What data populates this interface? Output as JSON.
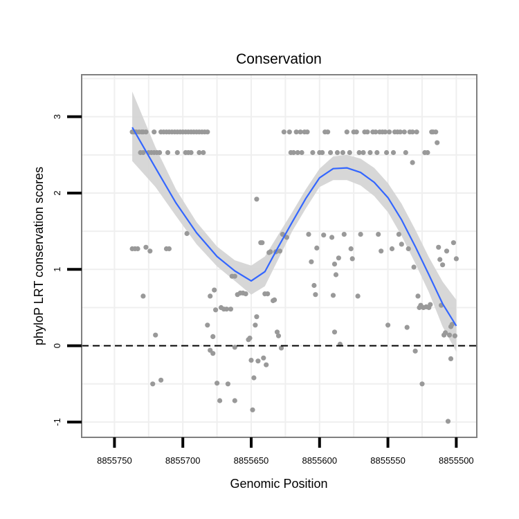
{
  "chart_data": {
    "type": "scatter",
    "title": "Conservation",
    "xlabel": "Genomic Position",
    "ylabel": "phyloP LRT conservation scores",
    "x_reversed": true,
    "xlim": [
      8855774,
      8855485
    ],
    "ylim": [
      -1.2,
      3.55
    ],
    "x_ticks": [
      8855750,
      8855700,
      8855650,
      8855600,
      8855550,
      8855500
    ],
    "x_tick_labels": [
      "8855750",
      "8855700",
      "8855650",
      "8855600",
      "8855550",
      "8855500"
    ],
    "y_ticks": [
      -1,
      0,
      1,
      2,
      3
    ],
    "y_tick_labels": [
      "-1",
      "0",
      "1",
      "2",
      "3"
    ],
    "reference_line": {
      "y": 0,
      "style": "dashed",
      "color": "#000000"
    },
    "grid": true,
    "colors": {
      "points": "#999999",
      "smooth": "#3366ff",
      "band": "#d3d3d3",
      "grid": "#efefef",
      "frame": "#7f7f7f"
    },
    "points": [
      {
        "x": 8855737,
        "y": 2.8
      },
      {
        "x": 8855736,
        "y": 2.8
      },
      {
        "x": 8855735,
        "y": 2.8
      },
      {
        "x": 8855734,
        "y": 2.8
      },
      {
        "x": 8855732,
        "y": 2.8
      },
      {
        "x": 8855730,
        "y": 2.8
      },
      {
        "x": 8855729,
        "y": 2.8
      },
      {
        "x": 8855727,
        "y": 2.8
      },
      {
        "x": 8855721,
        "y": 2.8
      },
      {
        "x": 8855716,
        "y": 2.8
      },
      {
        "x": 8855714,
        "y": 2.8
      },
      {
        "x": 8855712,
        "y": 2.8
      },
      {
        "x": 8855710,
        "y": 2.8
      },
      {
        "x": 8855708,
        "y": 2.8
      },
      {
        "x": 8855706,
        "y": 2.8
      },
      {
        "x": 8855704,
        "y": 2.8
      },
      {
        "x": 8855702,
        "y": 2.8
      },
      {
        "x": 8855700,
        "y": 2.8
      },
      {
        "x": 8855698,
        "y": 2.8
      },
      {
        "x": 8855696,
        "y": 2.8
      },
      {
        "x": 8855694,
        "y": 2.8
      },
      {
        "x": 8855692,
        "y": 2.8
      },
      {
        "x": 8855690,
        "y": 2.8
      },
      {
        "x": 8855688,
        "y": 2.8
      },
      {
        "x": 8855686,
        "y": 2.8
      },
      {
        "x": 8855684,
        "y": 2.8
      },
      {
        "x": 8855682,
        "y": 2.8
      },
      {
        "x": 8855731,
        "y": 2.53
      },
      {
        "x": 8855729,
        "y": 2.53
      },
      {
        "x": 8855725,
        "y": 2.53
      },
      {
        "x": 8855723,
        "y": 2.53
      },
      {
        "x": 8855721,
        "y": 2.53
      },
      {
        "x": 8855719,
        "y": 2.53
      },
      {
        "x": 8855717,
        "y": 2.53
      },
      {
        "x": 8855711,
        "y": 2.53
      },
      {
        "x": 8855704,
        "y": 2.53
      },
      {
        "x": 8855698,
        "y": 2.53
      },
      {
        "x": 8855696,
        "y": 2.53
      },
      {
        "x": 8855694,
        "y": 2.53
      },
      {
        "x": 8855688,
        "y": 2.53
      },
      {
        "x": 8855685,
        "y": 2.53
      },
      {
        "x": 8855737,
        "y": 1.27
      },
      {
        "x": 8855735,
        "y": 1.27
      },
      {
        "x": 8855733,
        "y": 1.27
      },
      {
        "x": 8855727,
        "y": 1.29
      },
      {
        "x": 8855724,
        "y": 1.24
      },
      {
        "x": 8855712,
        "y": 1.27
      },
      {
        "x": 8855710,
        "y": 1.27
      },
      {
        "x": 8855697,
        "y": 1.47
      },
      {
        "x": 8855729,
        "y": 0.65
      },
      {
        "x": 8855720,
        "y": 0.14
      },
      {
        "x": 8855722,
        "y": -0.5
      },
      {
        "x": 8855716,
        "y": -0.45
      },
      {
        "x": 8855682,
        "y": 0.27
      },
      {
        "x": 8855680,
        "y": 0.65
      },
      {
        "x": 8855680,
        "y": -0.06
      },
      {
        "x": 8855678,
        "y": 0.12
      },
      {
        "x": 8855678,
        "y": -0.1
      },
      {
        "x": 8855677,
        "y": 0.73
      },
      {
        "x": 8855676,
        "y": 0.47
      },
      {
        "x": 8855675,
        "y": -0.49
      },
      {
        "x": 8855673,
        "y": -0.72
      },
      {
        "x": 8855672,
        "y": 0.5
      },
      {
        "x": 8855670,
        "y": 0.48
      },
      {
        "x": 8855668,
        "y": 0.48
      },
      {
        "x": 8855667,
        "y": -0.5
      },
      {
        "x": 8855665,
        "y": 0.48
      },
      {
        "x": 8855664,
        "y": 0.91
      },
      {
        "x": 8855662,
        "y": -0.02
      },
      {
        "x": 8855662,
        "y": -0.72
      },
      {
        "x": 8855662,
        "y": 0.91
      },
      {
        "x": 8855660,
        "y": 0.67
      },
      {
        "x": 8855658,
        "y": 0.69
      },
      {
        "x": 8855656,
        "y": 0.69
      },
      {
        "x": 8855654,
        "y": 0.68
      },
      {
        "x": 8855652,
        "y": 0.08
      },
      {
        "x": 8855651,
        "y": 0.1
      },
      {
        "x": 8855650,
        "y": -0.19
      },
      {
        "x": 8855649,
        "y": -0.84
      },
      {
        "x": 8855648,
        "y": -0.42
      },
      {
        "x": 8855647,
        "y": 0.27
      },
      {
        "x": 8855646,
        "y": 0.38
      },
      {
        "x": 8855646,
        "y": 1.92
      },
      {
        "x": 8855645,
        "y": -0.2
      },
      {
        "x": 8855643,
        "y": 1.35
      },
      {
        "x": 8855642,
        "y": 1.35
      },
      {
        "x": 8855641,
        "y": -0.16
      },
      {
        "x": 8855640,
        "y": 0.68
      },
      {
        "x": 8855639,
        "y": -0.25
      },
      {
        "x": 8855638,
        "y": 0.68
      },
      {
        "x": 8855637,
        "y": 1.22
      },
      {
        "x": 8855636,
        "y": 1.23
      },
      {
        "x": 8855634,
        "y": 0.59
      },
      {
        "x": 8855633,
        "y": 0.6
      },
      {
        "x": 8855632,
        "y": 1.23
      },
      {
        "x": 8855631,
        "y": 0.18
      },
      {
        "x": 8855630,
        "y": 0.13
      },
      {
        "x": 8855629,
        "y": 1.24
      },
      {
        "x": 8855628,
        "y": -0.03
      },
      {
        "x": 8855627,
        "y": 1.46
      },
      {
        "x": 8855626,
        "y": 2.8
      },
      {
        "x": 8855624,
        "y": 1.42
      },
      {
        "x": 8855622,
        "y": 2.8
      },
      {
        "x": 8855621,
        "y": 2.53
      },
      {
        "x": 8855619,
        "y": 2.53
      },
      {
        "x": 8855617,
        "y": 2.8
      },
      {
        "x": 8855616,
        "y": 2.53
      },
      {
        "x": 8855614,
        "y": 2.8
      },
      {
        "x": 8855613,
        "y": 2.53
      },
      {
        "x": 8855611,
        "y": 2.8
      },
      {
        "x": 8855609,
        "y": 2.8
      },
      {
        "x": 8855608,
        "y": 1.46
      },
      {
        "x": 8855606,
        "y": 1.1
      },
      {
        "x": 8855605,
        "y": 2.53
      },
      {
        "x": 8855604,
        "y": 0.79
      },
      {
        "x": 8855603,
        "y": 0.67
      },
      {
        "x": 8855602,
        "y": 1.28
      },
      {
        "x": 8855600,
        "y": 2.53
      },
      {
        "x": 8855598,
        "y": 2.53
      },
      {
        "x": 8855597,
        "y": 1.45
      },
      {
        "x": 8855596,
        "y": 2.8
      },
      {
        "x": 8855594,
        "y": 2.8
      },
      {
        "x": 8855592,
        "y": 2.53
      },
      {
        "x": 8855591,
        "y": 1.42
      },
      {
        "x": 8855590,
        "y": 0.66
      },
      {
        "x": 8855589,
        "y": 0.18
      },
      {
        "x": 8855589,
        "y": 1.07
      },
      {
        "x": 8855588,
        "y": 0.93
      },
      {
        "x": 8855587,
        "y": 2.53
      },
      {
        "x": 8855586,
        "y": 1.15
      },
      {
        "x": 8855585,
        "y": 0.02
      },
      {
        "x": 8855583,
        "y": 2.53
      },
      {
        "x": 8855582,
        "y": 1.46
      },
      {
        "x": 8855580,
        "y": 2.8
      },
      {
        "x": 8855578,
        "y": 2.53
      },
      {
        "x": 8855577,
        "y": 1.27
      },
      {
        "x": 8855576,
        "y": 1.14
      },
      {
        "x": 8855575,
        "y": 2.8
      },
      {
        "x": 8855573,
        "y": 2.8
      },
      {
        "x": 8855572,
        "y": 0.65
      },
      {
        "x": 8855571,
        "y": 2.53
      },
      {
        "x": 8855570,
        "y": 1.46
      },
      {
        "x": 8855568,
        "y": 2.53
      },
      {
        "x": 8855567,
        "y": 2.8
      },
      {
        "x": 8855565,
        "y": 2.8
      },
      {
        "x": 8855563,
        "y": 2.53
      },
      {
        "x": 8855561,
        "y": 2.8
      },
      {
        "x": 8855559,
        "y": 2.8
      },
      {
        "x": 8855558,
        "y": 2.53
      },
      {
        "x": 8855557,
        "y": 1.46
      },
      {
        "x": 8855556,
        "y": 2.8
      },
      {
        "x": 8855555,
        "y": 1.24
      },
      {
        "x": 8855554,
        "y": 2.8
      },
      {
        "x": 8855552,
        "y": 2.8
      },
      {
        "x": 8855551,
        "y": 2.53
      },
      {
        "x": 8855550,
        "y": 0.27
      },
      {
        "x": 8855549,
        "y": 2.8
      },
      {
        "x": 8855547,
        "y": 1.27
      },
      {
        "x": 8855546,
        "y": 2.53
      },
      {
        "x": 8855545,
        "y": 2.8
      },
      {
        "x": 8855543,
        "y": 2.8
      },
      {
        "x": 8855542,
        "y": 1.46
      },
      {
        "x": 8855541,
        "y": 2.8
      },
      {
        "x": 8855540,
        "y": 1.33
      },
      {
        "x": 8855538,
        "y": 2.8
      },
      {
        "x": 8855537,
        "y": 2.53
      },
      {
        "x": 8855536,
        "y": 0.24
      },
      {
        "x": 8855535,
        "y": 1.27
      },
      {
        "x": 8855534,
        "y": 2.8
      },
      {
        "x": 8855532,
        "y": 2.8
      },
      {
        "x": 8855532,
        "y": 2.4
      },
      {
        "x": 8855531,
        "y": 1.03
      },
      {
        "x": 8855530,
        "y": -0.07
      },
      {
        "x": 8855529,
        "y": 2.8
      },
      {
        "x": 8855528,
        "y": 0.65
      },
      {
        "x": 8855527,
        "y": 0.5
      },
      {
        "x": 8855526,
        "y": 0.53
      },
      {
        "x": 8855525,
        "y": -0.5
      },
      {
        "x": 8855524,
        "y": 0.5
      },
      {
        "x": 8855523,
        "y": 2.53
      },
      {
        "x": 8855522,
        "y": 0.51
      },
      {
        "x": 8855521,
        "y": 2.53
      },
      {
        "x": 8855520,
        "y": 0.5
      },
      {
        "x": 8855519,
        "y": 0.54
      },
      {
        "x": 8855518,
        "y": 2.8
      },
      {
        "x": 8855517,
        "y": 2.8
      },
      {
        "x": 8855515,
        "y": 2.8
      },
      {
        "x": 8855514,
        "y": 2.66
      },
      {
        "x": 8855513,
        "y": 1.29
      },
      {
        "x": 8855512,
        "y": 1.13
      },
      {
        "x": 8855511,
        "y": 0.53
      },
      {
        "x": 8855510,
        "y": 1.06
      },
      {
        "x": 8855509,
        "y": 0.14
      },
      {
        "x": 8855508,
        "y": 0.17
      },
      {
        "x": 8855507,
        "y": 1.24
      },
      {
        "x": 8855506,
        "y": -0.99
      },
      {
        "x": 8855505,
        "y": 0.14
      },
      {
        "x": 8855504,
        "y": 0.25
      },
      {
        "x": 8855504,
        "y": -0.17
      },
      {
        "x": 8855503,
        "y": 0.28
      },
      {
        "x": 8855502,
        "y": 1.35
      },
      {
        "x": 8855501,
        "y": 0.13
      },
      {
        "x": 8855500,
        "y": 1.14
      }
    ],
    "smooth_line": {
      "x": [
        8855737,
        8855720,
        8855705,
        8855690,
        8855675,
        8855662,
        8855650,
        8855640,
        8855630,
        8855620,
        8855610,
        8855600,
        8855590,
        8855580,
        8855570,
        8855560,
        8855550,
        8855540,
        8855530,
        8855520,
        8855510,
        8855500
      ],
      "y": [
        2.86,
        2.33,
        1.87,
        1.48,
        1.17,
        0.98,
        0.85,
        0.97,
        1.3,
        1.62,
        1.93,
        2.2,
        2.32,
        2.33,
        2.27,
        2.14,
        1.94,
        1.65,
        1.3,
        0.93,
        0.55,
        0.26
      ],
      "ci_upper": [
        3.33,
        2.6,
        2.05,
        1.62,
        1.3,
        1.12,
        1.05,
        1.17,
        1.46,
        1.75,
        2.05,
        2.32,
        2.48,
        2.5,
        2.45,
        2.33,
        2.13,
        1.86,
        1.52,
        1.16,
        0.84,
        0.6
      ],
      "ci_lower": [
        2.42,
        2.08,
        1.7,
        1.33,
        1.04,
        0.85,
        0.67,
        0.78,
        1.14,
        1.5,
        1.8,
        2.08,
        2.17,
        2.17,
        2.1,
        1.96,
        1.75,
        1.44,
        1.08,
        0.7,
        0.25,
        -0.08
      ]
    }
  }
}
